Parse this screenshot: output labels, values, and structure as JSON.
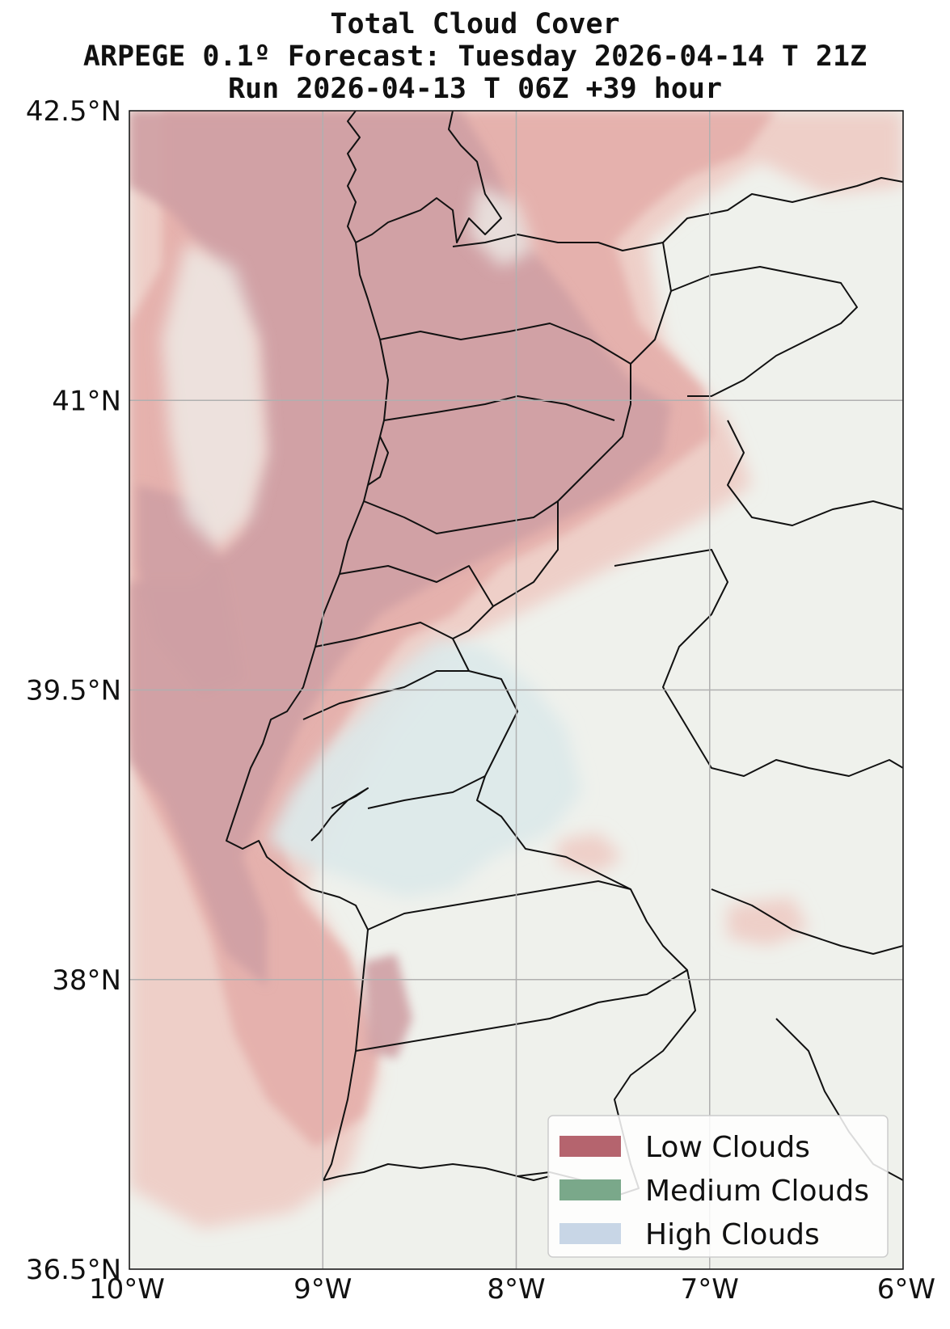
{
  "title": {
    "line1": "Total Cloud Cover",
    "line2": "ARPEGE 0.1º Forecast: Tuesday 2026-04-14 T 21Z",
    "line3": "Run 2026-04-13 T 06Z +39 hour"
  },
  "map": {
    "lon_range": [
      -10,
      -6
    ],
    "lat_range": [
      36.5,
      42.5
    ],
    "lon_ticks": [
      {
        "value": -10,
        "label": "10°W"
      },
      {
        "value": -9,
        "label": "9°W"
      },
      {
        "value": -8,
        "label": "8°W"
      },
      {
        "value": -7,
        "label": "7°W"
      },
      {
        "value": -6,
        "label": "6°W"
      }
    ],
    "lat_ticks": [
      {
        "value": 42.5,
        "label": "42.5°N"
      },
      {
        "value": 41,
        "label": "41°N"
      },
      {
        "value": 39.5,
        "label": "39.5°N"
      },
      {
        "value": 38,
        "label": "38°N"
      },
      {
        "value": 36.5,
        "label": "36.5°N"
      }
    ],
    "grid": true
  },
  "legend": {
    "placement": "bottom-right",
    "items": [
      {
        "label": "Low Clouds",
        "color": "#b5646e"
      },
      {
        "label": "Medium Clouds",
        "color": "#7aa88a"
      },
      {
        "label": "High Clouds",
        "color": "#c8d6e6"
      }
    ]
  },
  "colors": {
    "background": "#eff1ec",
    "low_cloud_light": "#efc9c2",
    "low_cloud_mid": "#e4aaa6",
    "low_cloud_dense": "#cfa0a4",
    "high_cloud": "#dce9ea",
    "border": "#111111",
    "grid": "#b0b0b0"
  }
}
